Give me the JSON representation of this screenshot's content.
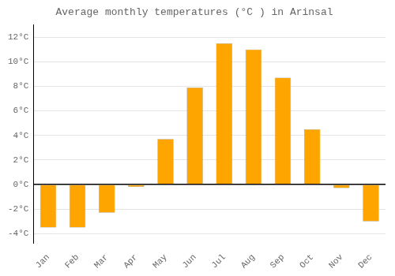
{
  "chart_data": {
    "type": "bar",
    "title": "Average monthly temperatures (°C ) in Arinsal",
    "categories": [
      "Jan",
      "Feb",
      "Mar",
      "Apr",
      "May",
      "Jun",
      "Jul",
      "Aug",
      "Sep",
      "Oct",
      "Nov",
      "Dec"
    ],
    "values": [
      -3.5,
      -3.5,
      -2.3,
      -0.2,
      3.7,
      7.9,
      11.5,
      11.0,
      8.7,
      4.5,
      -0.3,
      -3.0
    ],
    "color": "#FFA500",
    "ylim": [
      -4.8,
      13.0
    ],
    "yticks": [
      {
        "value": -4,
        "label": "-4°C"
      },
      {
        "value": -2,
        "label": "-2°C"
      },
      {
        "value": 0,
        "label": "0°C"
      },
      {
        "value": 2,
        "label": "2°C"
      },
      {
        "value": 4,
        "label": "4°C"
      },
      {
        "value": 6,
        "label": "6°C"
      },
      {
        "value": 8,
        "label": "8°C"
      },
      {
        "value": 10,
        "label": "10°C"
      },
      {
        "value": 12,
        "label": "12°C"
      }
    ],
    "grid": true
  }
}
